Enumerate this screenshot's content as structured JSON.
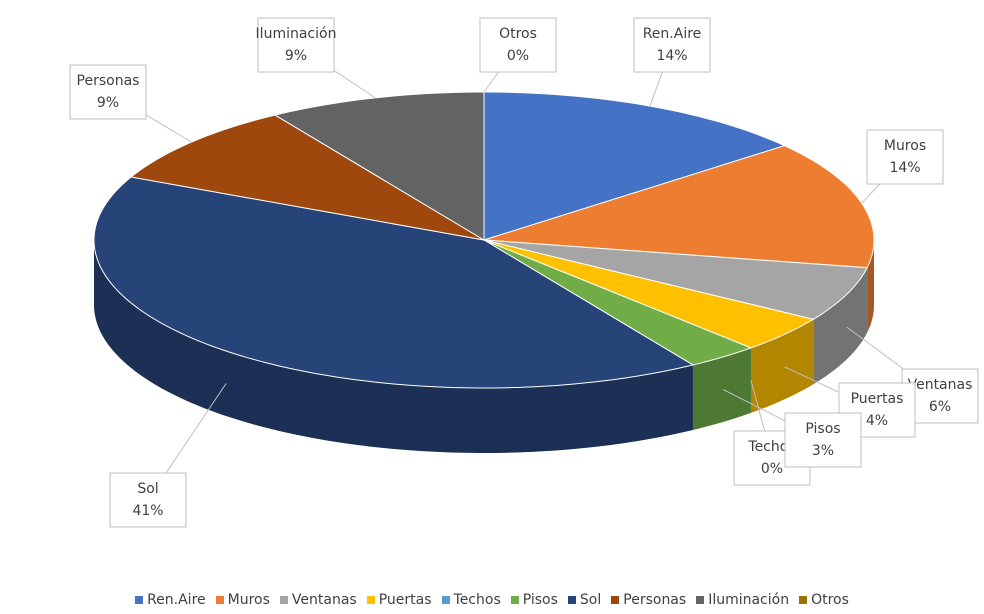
{
  "chart_data": {
    "type": "pie3d",
    "categories": [
      "Ren.Aire",
      "Muros",
      "Ventanas",
      "Puertas",
      "Techos",
      "Pisos",
      "Sol",
      "Personas",
      "Iluminación",
      "Otros"
    ],
    "values": [
      14,
      14,
      6,
      4,
      0,
      3,
      41,
      9,
      9,
      0
    ],
    "value_labels": [
      "14%",
      "14%",
      "6%",
      "4%",
      "0%",
      "3%",
      "41%",
      "9%",
      "9%",
      "0%"
    ],
    "colors": [
      "#4472c4",
      "#ed7d31",
      "#a5a5a5",
      "#ffc000",
      "#5b9bd5",
      "#70ad47",
      "#264478",
      "#9e480e",
      "#636363",
      "#997300"
    ],
    "legend": "bottom"
  }
}
